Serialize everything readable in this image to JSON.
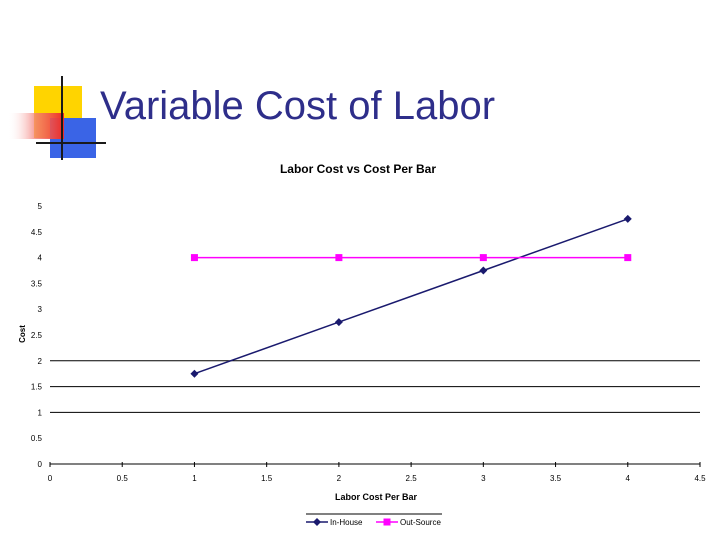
{
  "slide": {
    "title": "Variable Cost of Labor"
  },
  "colors": {
    "title": "#2e2e8a",
    "logo_yellow": "#ffd400",
    "logo_red": "#ee2b24",
    "logo_blue": "#3a64e6",
    "gridline": "#000000"
  },
  "chart_data": {
    "type": "line",
    "title": "Labor Cost vs Cost Per Bar",
    "xlabel": "Labor Cost Per Bar",
    "ylabel": "Cost",
    "xlim": [
      0,
      4.5
    ],
    "ylim": [
      0,
      5
    ],
    "x_ticks": [
      0,
      0.5,
      1,
      1.5,
      2,
      2.5,
      3,
      3.5,
      4,
      4.5
    ],
    "x_tick_labels": [
      "0",
      "0.5",
      "1",
      "1.5",
      "2",
      "2.5",
      "3",
      "3.5",
      "4",
      "4.5"
    ],
    "y_ticks": [
      0,
      0.5,
      1,
      1.5,
      2,
      2.5,
      3,
      3.5,
      4,
      4.5,
      5
    ],
    "y_tick_labels": [
      "0",
      "0.5",
      "1",
      "1.5",
      "2",
      "2.5",
      "3",
      "3.5",
      "4",
      "4.5",
      "5"
    ],
    "gridlines_y": [
      0,
      1,
      1.5,
      2
    ],
    "legend_position": "bottom",
    "series": [
      {
        "name": "In-House",
        "color": "#1a1a6e",
        "marker": "diamond",
        "x": [
          1,
          2,
          3,
          4
        ],
        "y": [
          1.75,
          2.75,
          3.75,
          4.75
        ]
      },
      {
        "name": "Out-Source",
        "color": "#ff00ff",
        "marker": "square",
        "x": [
          1,
          2,
          3,
          4
        ],
        "y": [
          4,
          4,
          4,
          4
        ]
      }
    ]
  }
}
